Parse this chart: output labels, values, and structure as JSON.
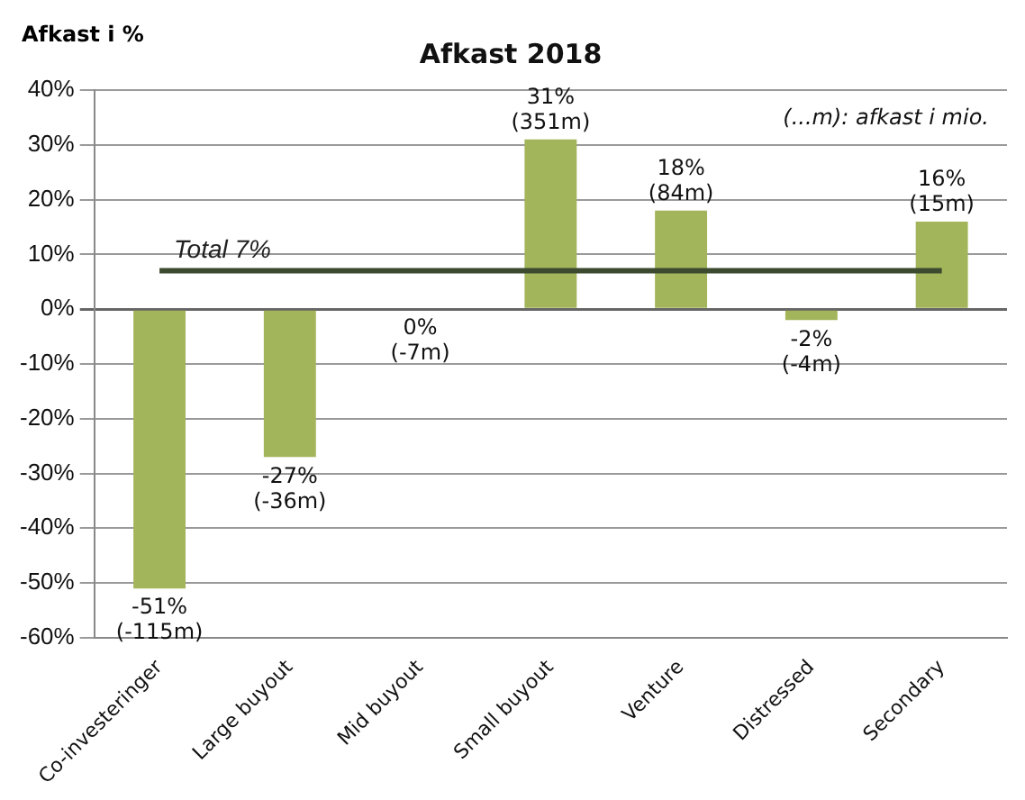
{
  "chart_data": {
    "type": "bar",
    "title": "Afkast 2018",
    "ylabel": "Afkast i %",
    "categories": [
      "Co-investeringer",
      "Large buyout",
      "Mid buyout",
      "Small buyout",
      "Venture",
      "Distressed",
      "Secondary"
    ],
    "values": [
      -51,
      -27,
      0,
      31,
      18,
      -2,
      16
    ],
    "value_labels": [
      "-51%\n(-115m)",
      "-27%\n(-36m)",
      "0%\n(-7m)",
      "31%\n(351m)",
      "18%\n(84m)",
      "-2%\n(-4m)",
      "16%\n(15m)"
    ],
    "color": "#a3b55a",
    "ylim": [
      -60,
      40
    ],
    "yticks": [
      {
        "value": -60,
        "label": "-60%"
      },
      {
        "value": -50,
        "label": "-50%"
      },
      {
        "value": -40,
        "label": "-40%"
      },
      {
        "value": -30,
        "label": "-30%"
      },
      {
        "value": -20,
        "label": "-20%"
      },
      {
        "value": -10,
        "label": "-10%"
      },
      {
        "value": 0,
        "label": "0%"
      },
      {
        "value": 10,
        "label": "10%"
      },
      {
        "value": 20,
        "label": "20%"
      },
      {
        "value": 30,
        "label": "30%"
      },
      {
        "value": 40,
        "label": "40%"
      }
    ],
    "ref_lines": [
      {
        "axis": "y",
        "value": 7,
        "label": "Total 7%",
        "color": "#3c4a30"
      }
    ],
    "annotations": [
      "(...m): afkast i mio."
    ],
    "grid": "y",
    "legend": false
  }
}
